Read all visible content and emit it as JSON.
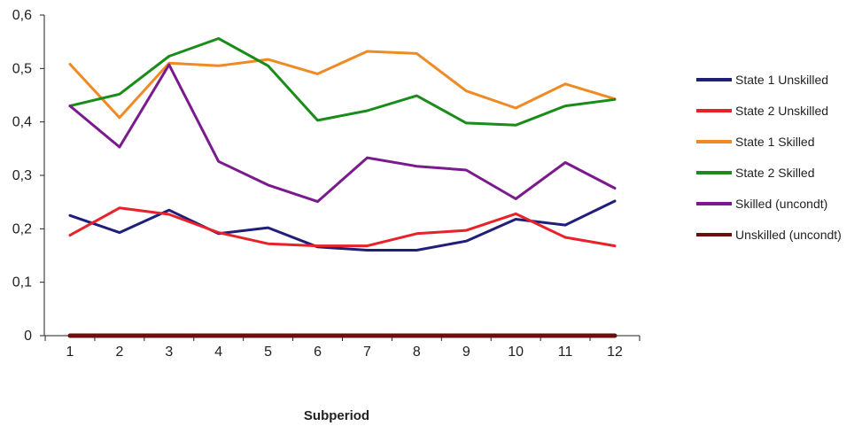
{
  "chart_data": {
    "type": "line",
    "title": "",
    "xlabel": "Subperiod",
    "ylabel": "",
    "x": [
      1,
      2,
      3,
      4,
      5,
      6,
      7,
      8,
      9,
      10,
      11,
      12
    ],
    "x_tick_labels": [
      "1",
      "2",
      "3",
      "4",
      "5",
      "6",
      "7",
      "8",
      "9",
      "10",
      "11",
      "12"
    ],
    "ylim": [
      0,
      0.6
    ],
    "y_ticks": [
      0,
      0.1,
      0.2,
      0.3,
      0.4,
      0.5,
      0.6
    ],
    "y_tick_labels": [
      "0",
      "0,1",
      "0,2",
      "0,3",
      "0,4",
      "0,5",
      "0,6"
    ],
    "grid": false,
    "legend_position": "right",
    "series": [
      {
        "name": "State 1 Unskilled",
        "color": "#1f1f7a",
        "values": [
          0.225,
          0.193,
          0.235,
          0.191,
          0.202,
          0.166,
          0.16,
          0.16,
          0.177,
          0.218,
          0.207,
          0.252
        ]
      },
      {
        "name": "State 2 Unskilled",
        "color": "#e8212a",
        "values": [
          0.188,
          0.239,
          0.227,
          0.193,
          0.172,
          0.168,
          0.168,
          0.191,
          0.197,
          0.228,
          0.184,
          0.168
        ]
      },
      {
        "name": "State 1 Skilled",
        "color": "#f08a24",
        "values": [
          0.508,
          0.408,
          0.51,
          0.505,
          0.517,
          0.49,
          0.532,
          0.528,
          0.458,
          0.426,
          0.471,
          0.443
        ]
      },
      {
        "name": "State 2 Skilled",
        "color": "#1a8c1a",
        "values": [
          0.43,
          0.452,
          0.523,
          0.556,
          0.505,
          0.403,
          0.421,
          0.449,
          0.398,
          0.394,
          0.43,
          0.442
        ]
      },
      {
        "name": "Skilled (uncondt)",
        "color": "#7a1a8c",
        "values": [
          0.43,
          0.353,
          0.507,
          0.326,
          0.282,
          0.251,
          0.333,
          0.317,
          0.31,
          0.256,
          0.324,
          0.276
        ]
      },
      {
        "name": "Unskilled (uncondt)",
        "color": "#6b0e0e",
        "values": [
          0,
          0,
          0,
          0,
          0,
          0,
          0,
          0,
          0,
          0,
          0,
          0
        ]
      }
    ]
  }
}
